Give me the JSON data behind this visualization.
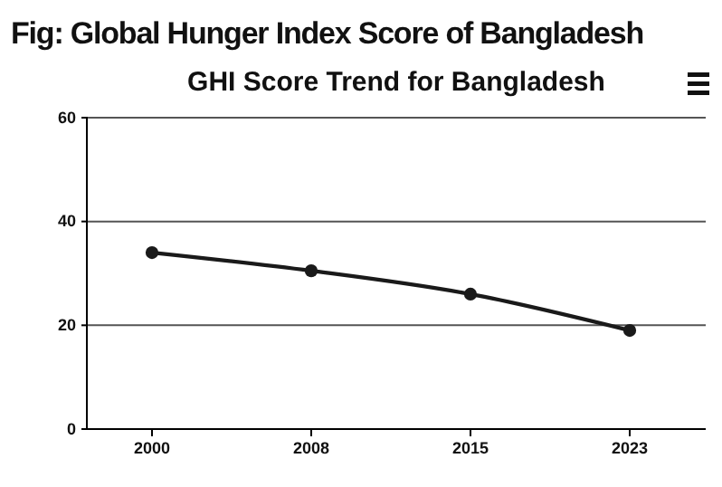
{
  "chart_data": {
    "type": "line",
    "title": "GHI Score Trend for Bangladesh",
    "subtitle": "Fig: Global Hunger Index Score of Bangladesh",
    "categories": [
      "2000",
      "2008",
      "2015",
      "2023"
    ],
    "series": [
      {
        "color": "#1a1a1a",
        "values": [
          34,
          30.5,
          26,
          19
        ]
      }
    ],
    "ylim": [
      0,
      60
    ],
    "yticks": [
      0,
      20,
      40,
      60
    ],
    "grid": "y",
    "marker": "circle",
    "line_style": "solid"
  }
}
